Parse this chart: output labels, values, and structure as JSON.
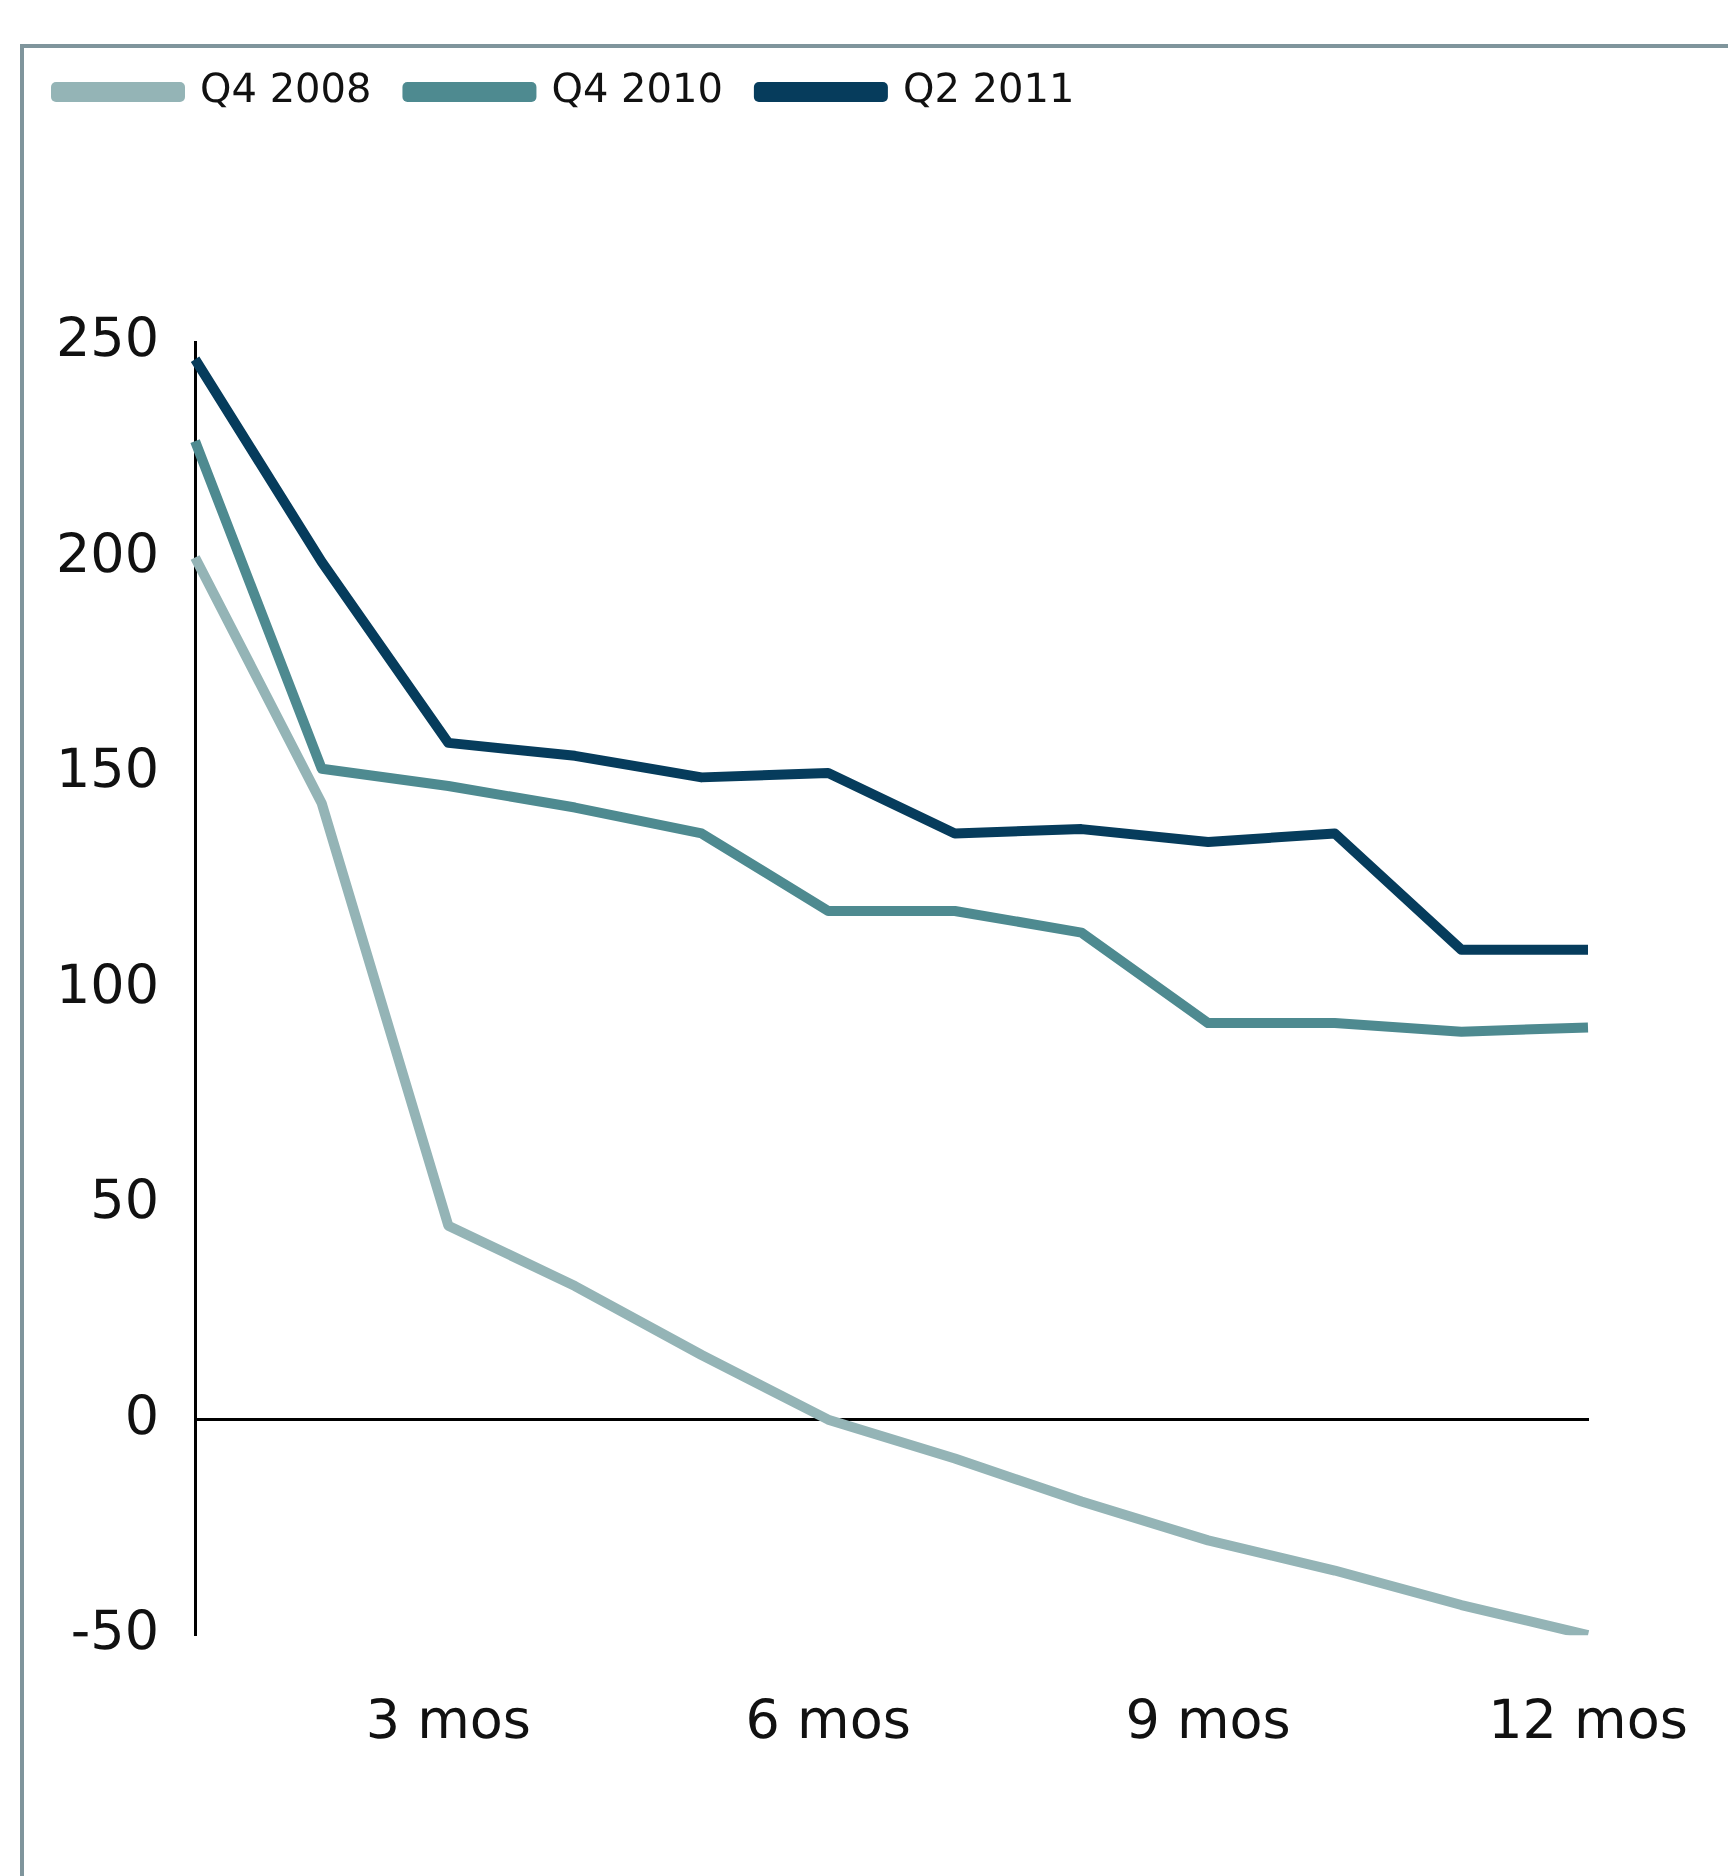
{
  "chart_data": {
    "type": "line",
    "categories": [
      null,
      null,
      "3 mos",
      null,
      null,
      "6 mos",
      null,
      null,
      "9 mos",
      null,
      null,
      "12 mos"
    ],
    "series": [
      {
        "name": "Q4 2008",
        "color": "#94b4b6",
        "values": [
          200,
          143,
          45,
          31,
          15,
          0,
          -9,
          -19,
          -28,
          -35,
          -43,
          -50
        ]
      },
      {
        "name": "Q4 2010",
        "color": "#4e8a90",
        "values": [
          227,
          151,
          147,
          142,
          136,
          118,
          118,
          113,
          92,
          92,
          90,
          91
        ]
      },
      {
        "name": "Q2 2011",
        "color": "#063c5c",
        "values": [
          246,
          199,
          157,
          154,
          149,
          150,
          136,
          137,
          134,
          136,
          109,
          109
        ]
      }
    ],
    "ylim": [
      -50,
      250
    ],
    "yticks": [
      -50,
      0,
      50,
      100,
      150,
      200,
      250
    ],
    "legend": "top left",
    "marker": "none",
    "line_style": "solid"
  }
}
